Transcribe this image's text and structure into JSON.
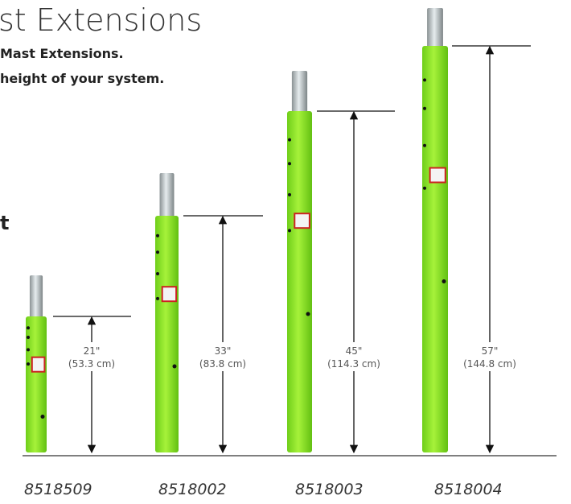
{
  "header": {
    "title": "st Extensions",
    "lines": [
      "Mast Extensions.",
      "height of your system."
    ],
    "fragment": "t"
  },
  "products": [
    {
      "model": "8518509",
      "height": "21\"",
      "height_metric": "(53.3 cm)"
    },
    {
      "model": "8518002",
      "height": "33\"",
      "height_metric": "(83.8 cm)"
    },
    {
      "model": "8518003",
      "height": "45\"",
      "height_metric": "(114.3 cm)"
    },
    {
      "model": "8518004",
      "height": "57\"",
      "height_metric": "(144.8 cm)"
    }
  ]
}
